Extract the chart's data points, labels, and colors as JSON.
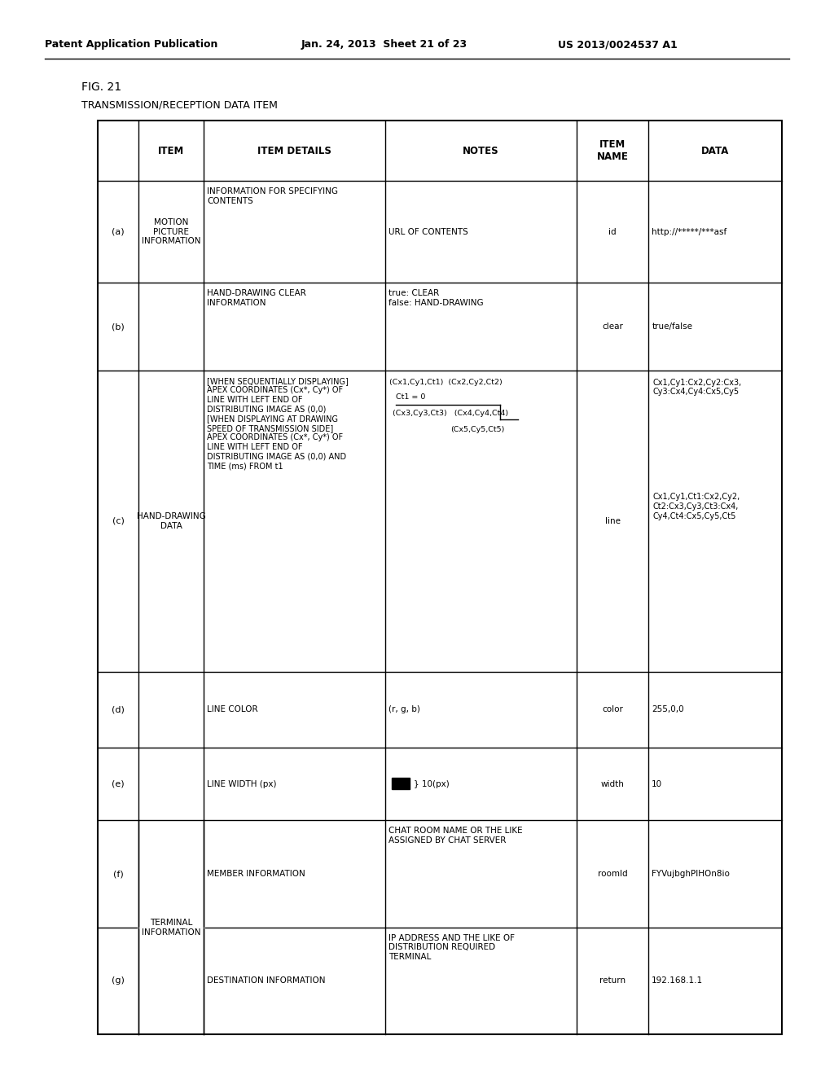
{
  "fig_label": "FIG. 21",
  "table_title": "TRANSMISSION/RECEPTION DATA ITEM",
  "pub_left": "Patent Application Publication",
  "pub_mid": "Jan. 24, 2013  Sheet 21 of 23",
  "pub_right": "US 2013/0024537 A1",
  "col_headers": [
    "",
    "ITEM",
    "ITEM DETAILS",
    "NOTES",
    "ITEM\nNAME",
    "DATA"
  ],
  "row_data": [
    [
      "(a)",
      "MOTION\nPICTURE\nINFORMATION",
      "INFORMATION FOR SPECIFYING\nCONTENTS",
      "URL OF CONTENTS",
      "id",
      "http://*****/***asf"
    ],
    [
      "(b)",
      "",
      "HAND-DRAWING CLEAR\nINFORMATION",
      "true: CLEAR\nfalse: HAND-DRAWING",
      "clear",
      "true/false"
    ],
    [
      "(c)",
      "HAND-DRAWING\nDATA",
      "[WHEN SEQUENTIALLY DISPLAYING]\nAPEX COORDINATES (Cx*, Cy*) OF\nLINE WITH LEFT END OF\nDISTRIBUTING IMAGE AS (0,0)\n[WHEN DISPLAYING AT DRAWING\nSPEED OF TRANSMISSION SIDE]\nAPEX COORDINATES (Cx*, Cy*) OF\nLINE WITH LEFT END OF\nDISTRIBUTING IMAGE AS (0,0) AND\nTIME (ms) FROM t1",
      "NOTES_C",
      "line",
      "DATA_C"
    ],
    [
      "(d)",
      "",
      "LINE COLOR",
      "(r, g, b)",
      "color",
      "255,0,0"
    ],
    [
      "(e)",
      "",
      "LINE WIDTH (px)",
      "NOTES_E",
      "width",
      "10"
    ],
    [
      "(f)",
      "TERMINAL\nINFORMATION",
      "MEMBER INFORMATION",
      "CHAT ROOM NAME OR THE LIKE\nASSIGNED BY CHAT SERVER",
      "roomId",
      "FYVujbghPIHOn8io"
    ],
    [
      "(g)",
      "",
      "DESTINATION INFORMATION",
      "IP ADDRESS AND THE LIKE OF\nDISTRIBUTION REQUIRED\nTERMINAL",
      "return",
      "192.168.1.1"
    ]
  ],
  "background_color": "#ffffff",
  "text_color": "#000000"
}
